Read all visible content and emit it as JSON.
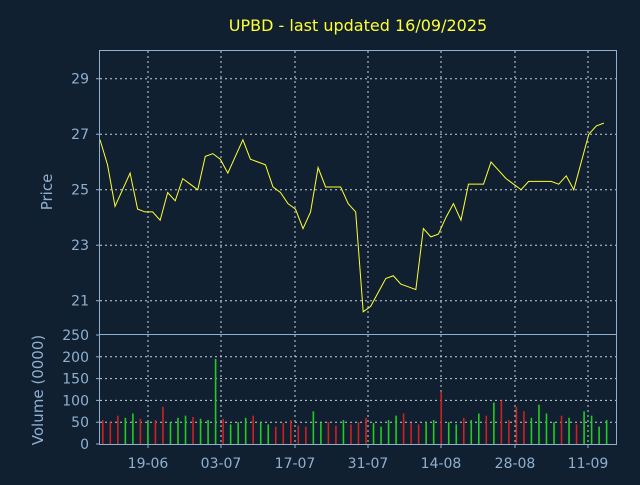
{
  "chart_data": [
    {
      "type": "line",
      "title": "UPBD - last updated 16/09/2025",
      "ylabel": "Price",
      "ylim": [
        19.8,
        30
      ],
      "yticks": [
        21,
        23,
        25,
        27,
        29
      ],
      "grid": true,
      "line_color": "#ffff33",
      "x": [
        "2025-06-10",
        "2025-06-11",
        "2025-06-12",
        "2025-06-13",
        "2025-06-16",
        "2025-06-17",
        "2025-06-18",
        "2025-06-20",
        "2025-06-23",
        "2025-06-24",
        "2025-06-25",
        "2025-06-26",
        "2025-06-27",
        "2025-06-30",
        "2025-07-01",
        "2025-07-02",
        "2025-07-03",
        "2025-07-07",
        "2025-07-08",
        "2025-07-09",
        "2025-07-10",
        "2025-07-11",
        "2025-07-14",
        "2025-07-15",
        "2025-07-16",
        "2025-07-17",
        "2025-07-18",
        "2025-07-21",
        "2025-07-22",
        "2025-07-23",
        "2025-07-24",
        "2025-07-25",
        "2025-07-28",
        "2025-07-29",
        "2025-07-30",
        "2025-07-31",
        "2025-08-01",
        "2025-08-04",
        "2025-08-05",
        "2025-08-06",
        "2025-08-07",
        "2025-08-08",
        "2025-08-11",
        "2025-08-12",
        "2025-08-13",
        "2025-08-14",
        "2025-08-15",
        "2025-08-18",
        "2025-08-19",
        "2025-08-20",
        "2025-08-21",
        "2025-08-22",
        "2025-08-25",
        "2025-08-26",
        "2025-08-27",
        "2025-08-28",
        "2025-08-29",
        "2025-09-02",
        "2025-09-03",
        "2025-09-04",
        "2025-09-05",
        "2025-09-08",
        "2025-09-09",
        "2025-09-10",
        "2025-09-11",
        "2025-09-12",
        "2025-09-15",
        "2025-09-16"
      ],
      "values": [
        26.8,
        25.9,
        24.4,
        25.0,
        25.6,
        24.3,
        24.2,
        24.2,
        23.9,
        24.9,
        24.6,
        25.4,
        25.2,
        25.0,
        26.2,
        26.3,
        26.1,
        25.6,
        26.2,
        26.8,
        26.1,
        26.0,
        25.9,
        25.1,
        24.9,
        24.5,
        24.3,
        23.6,
        24.2,
        25.8,
        25.1,
        25.1,
        25.1,
        24.5,
        24.2,
        20.6,
        20.8,
        21.3,
        21.8,
        21.9,
        21.6,
        21.5,
        21.4,
        23.6,
        23.3,
        23.4,
        24.0,
        24.5,
        23.9,
        25.2,
        25.2,
        25.2,
        26.0,
        25.7,
        25.4,
        25.2,
        25.0,
        25.3,
        25.3,
        25.3,
        25.3,
        25.2,
        25.5,
        25.0,
        26.0,
        27.0,
        27.3,
        27.4
      ]
    },
    {
      "type": "bar",
      "ylabel": "Volume (0000)",
      "ylim": [
        0,
        250
      ],
      "yticks": [
        0,
        50,
        100,
        150,
        200,
        250
      ],
      "grid": true,
      "up_color": "#22cc22",
      "down_color": "#cc2222",
      "x_tick_labels": [
        "19-06",
        "03-07",
        "17-07",
        "31-07",
        "14-08",
        "28-08",
        "11-09"
      ],
      "values": [
        55,
        50,
        65,
        60,
        70,
        58,
        52,
        55,
        85,
        50,
        60,
        65,
        62,
        58,
        55,
        195,
        58,
        45,
        50,
        60,
        65,
        50,
        45,
        40,
        48,
        55,
        42,
        40,
        75,
        48,
        50,
        42,
        55,
        45,
        50,
        60,
        48,
        40,
        55,
        65,
        70,
        48,
        45,
        50,
        55,
        120,
        50,
        45,
        60,
        55,
        70,
        65,
        95,
        100,
        55,
        85,
        75,
        60,
        90,
        70,
        50,
        65,
        60,
        45,
        75,
        65,
        40,
        55
      ],
      "direction": [
        "down",
        "down",
        "down",
        "up",
        "up",
        "down",
        "up",
        "down",
        "down",
        "up",
        "up",
        "up",
        "down",
        "up",
        "up",
        "up",
        "down",
        "up",
        "up",
        "up",
        "down",
        "up",
        "up",
        "down",
        "down",
        "down",
        "down",
        "down",
        "up",
        "up",
        "down",
        "down",
        "up",
        "down",
        "down",
        "down",
        "up",
        "up",
        "up",
        "up",
        "down",
        "down",
        "down",
        "up",
        "up",
        "down",
        "up",
        "up",
        "down",
        "up",
        "up",
        "down",
        "up",
        "down",
        "down",
        "down",
        "down",
        "up",
        "up",
        "up",
        "up",
        "down",
        "up",
        "down",
        "up",
        "up",
        "up",
        "up"
      ]
    }
  ]
}
